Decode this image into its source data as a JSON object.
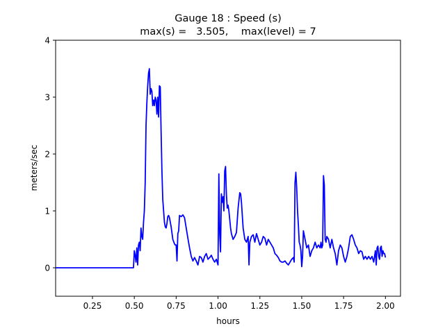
{
  "chart_data": {
    "type": "line",
    "title": "Gauge 18 : Speed (s)",
    "subtitle": "max(s) =   3.505,    max(level) = 7",
    "xlabel": "hours",
    "ylabel": "meters/sec",
    "xlim": [
      0.03,
      2.09
    ],
    "ylim": [
      -0.5,
      4.0
    ],
    "xticks": [
      0.25,
      0.5,
      0.75,
      1.0,
      1.25,
      1.5,
      1.75,
      2.0
    ],
    "xtick_labels": [
      "0.25",
      "0.50",
      "0.75",
      "1.00",
      "1.25",
      "1.50",
      "1.75",
      "2.00"
    ],
    "yticks": [
      0,
      1,
      2,
      3,
      4
    ],
    "ytick_labels": [
      "0",
      "1",
      "2",
      "3",
      "4"
    ],
    "grid": false,
    "line_color": "#0000ff",
    "series": [
      {
        "x": [
          0.03,
          0.1,
          0.2,
          0.3,
          0.4,
          0.48,
          0.495,
          0.5,
          0.505,
          0.51,
          0.515,
          0.52,
          0.525,
          0.53,
          0.535,
          0.54,
          0.545,
          0.55,
          0.555,
          0.56,
          0.565,
          0.57,
          0.575,
          0.58,
          0.585,
          0.59,
          0.595,
          0.6,
          0.605,
          0.61,
          0.615,
          0.62,
          0.625,
          0.63,
          0.635,
          0.64,
          0.645,
          0.65,
          0.655,
          0.66,
          0.665,
          0.67,
          0.675,
          0.68,
          0.685,
          0.69,
          0.695,
          0.7,
          0.705,
          0.71,
          0.72,
          0.73,
          0.74,
          0.745,
          0.75,
          0.755,
          0.76,
          0.765,
          0.77,
          0.78,
          0.79,
          0.8,
          0.81,
          0.82,
          0.83,
          0.84,
          0.85,
          0.86,
          0.87,
          0.88,
          0.89,
          0.9,
          0.91,
          0.92,
          0.93,
          0.94,
          0.95,
          0.96,
          0.97,
          0.98,
          0.99,
          1.0,
          1.005,
          1.01,
          1.015,
          1.02,
          1.025,
          1.03,
          1.035,
          1.04,
          1.045,
          1.05,
          1.055,
          1.06,
          1.065,
          1.07,
          1.075,
          1.08,
          1.09,
          1.1,
          1.11,
          1.12,
          1.13,
          1.135,
          1.14,
          1.15,
          1.16,
          1.17,
          1.18,
          1.185,
          1.19,
          1.2,
          1.21,
          1.22,
          1.23,
          1.24,
          1.25,
          1.26,
          1.27,
          1.28,
          1.29,
          1.3,
          1.31,
          1.32,
          1.33,
          1.34,
          1.35,
          1.36,
          1.37,
          1.38,
          1.39,
          1.4,
          1.41,
          1.42,
          1.43,
          1.44,
          1.45,
          1.455,
          1.46,
          1.465,
          1.47,
          1.475,
          1.48,
          1.485,
          1.49,
          1.495,
          1.5,
          1.505,
          1.51,
          1.52,
          1.53,
          1.54,
          1.55,
          1.56,
          1.57,
          1.58,
          1.59,
          1.6,
          1.61,
          1.615,
          1.62,
          1.625,
          1.63,
          1.635,
          1.64,
          1.645,
          1.65,
          1.66,
          1.67,
          1.68,
          1.69,
          1.7,
          1.71,
          1.72,
          1.73,
          1.74,
          1.75,
          1.76,
          1.77,
          1.78,
          1.79,
          1.8,
          1.81,
          1.82,
          1.83,
          1.84,
          1.85,
          1.86,
          1.87,
          1.88,
          1.89,
          1.9,
          1.91,
          1.92,
          1.93,
          1.94,
          1.945,
          1.95,
          1.955,
          1.96,
          1.965,
          1.97,
          1.975,
          1.98,
          1.985,
          1.99,
          1.995,
          2.0
        ],
        "y": [
          0.0,
          0.0,
          0.0,
          0.0,
          0.0,
          0.0,
          0.0,
          0.3,
          0.22,
          0.1,
          0.35,
          0.05,
          0.4,
          0.45,
          0.3,
          0.7,
          0.55,
          0.5,
          0.8,
          1.0,
          1.5,
          2.5,
          2.9,
          3.2,
          3.42,
          3.5,
          3.05,
          3.15,
          3.1,
          2.85,
          2.95,
          2.85,
          3.0,
          2.95,
          2.7,
          3.0,
          2.65,
          3.2,
          3.18,
          2.4,
          1.7,
          1.2,
          1.0,
          0.8,
          0.72,
          0.7,
          0.78,
          0.9,
          0.92,
          0.88,
          0.72,
          0.5,
          0.42,
          0.4,
          0.4,
          0.12,
          0.6,
          0.65,
          0.92,
          0.9,
          0.93,
          0.88,
          0.7,
          0.52,
          0.35,
          0.2,
          0.12,
          0.18,
          0.12,
          0.05,
          0.2,
          0.18,
          0.1,
          0.2,
          0.25,
          0.15,
          0.18,
          0.22,
          0.15,
          0.1,
          0.15,
          0.05,
          1.65,
          0.6,
          0.28,
          1.3,
          1.15,
          1.25,
          1.0,
          1.7,
          1.78,
          1.3,
          1.05,
          1.1,
          1.0,
          0.85,
          0.7,
          0.6,
          0.5,
          0.55,
          0.62,
          1.05,
          1.32,
          1.3,
          1.15,
          0.7,
          0.5,
          0.45,
          0.55,
          0.05,
          0.45,
          0.55,
          0.58,
          0.45,
          0.6,
          0.5,
          0.4,
          0.45,
          0.55,
          0.52,
          0.4,
          0.5,
          0.45,
          0.4,
          0.35,
          0.25,
          0.22,
          0.18,
          0.12,
          0.1,
          0.1,
          0.12,
          0.08,
          0.05,
          0.1,
          0.15,
          0.18,
          0.1,
          1.5,
          1.68,
          1.4,
          1.0,
          0.75,
          0.45,
          0.4,
          0.3,
          0.02,
          0.2,
          0.65,
          0.5,
          0.35,
          0.4,
          0.2,
          0.3,
          0.35,
          0.45,
          0.35,
          0.4,
          0.35,
          0.45,
          0.35,
          0.4,
          1.62,
          1.45,
          0.5,
          0.45,
          0.55,
          0.5,
          0.35,
          0.5,
          0.35,
          0.25,
          0.05,
          0.3,
          0.4,
          0.35,
          0.2,
          0.1,
          0.2,
          0.35,
          0.55,
          0.58,
          0.5,
          0.4,
          0.35,
          0.25,
          0.3,
          0.28,
          0.15,
          0.2,
          0.15,
          0.2,
          0.15,
          0.2,
          0.1,
          0.3,
          0.05,
          0.35,
          0.38,
          0.2,
          0.15,
          0.35,
          0.38,
          0.2,
          0.3,
          0.25,
          0.25,
          0.18
        ]
      }
    ]
  }
}
